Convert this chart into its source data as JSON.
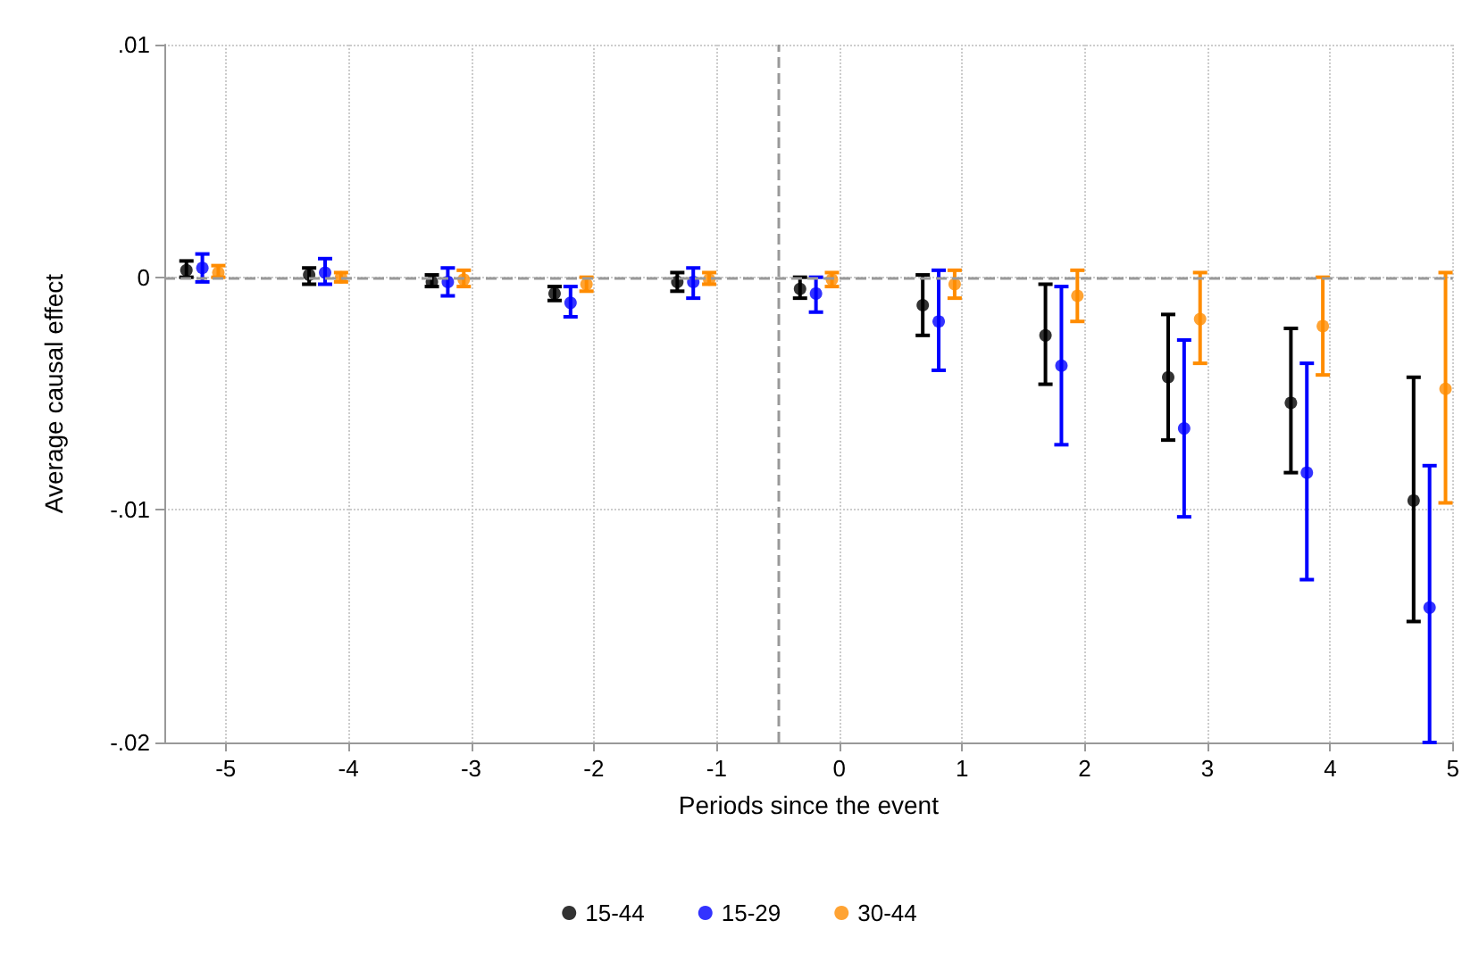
{
  "chart_data": {
    "type": "scatter",
    "xlabel": "Periods since the event",
    "ylabel": "Average causal effect",
    "xlim": [
      -5.5,
      5
    ],
    "xticks": [
      -5,
      -4,
      -3,
      -2,
      -1,
      0,
      1,
      2,
      3,
      4,
      5
    ],
    "ylim": [
      -0.02,
      0.01
    ],
    "yticks": [
      {
        "value": -0.02,
        "label": "-.02"
      },
      {
        "value": -0.01,
        "label": "-.01"
      },
      0,
      {
        "value": 0.01,
        "label": ".01"
      }
    ],
    "grid": true,
    "legend": "bottom",
    "marker": "circle",
    "ref_lines": [
      {
        "axis": "x",
        "value": -0.5,
        "color": "#999999",
        "line_style": "dashed"
      },
      {
        "axis": "y",
        "value": 0,
        "color": "#999999",
        "line_style": "dashed"
      }
    ],
    "series": [
      {
        "name": "15-44",
        "color": "#000000",
        "x": [
          -5.32,
          -4.32,
          -3.32,
          -2.32,
          -1.32,
          -0.32,
          0.68,
          1.68,
          2.68,
          3.68,
          4.68
        ],
        "values": [
          0.0003,
          0.0001,
          -0.0002,
          -0.0007,
          -0.0002,
          -0.0005,
          -0.0012,
          -0.0025,
          -0.0043,
          -0.0054,
          -0.0096
        ],
        "errors": [
          [
            0,
            0.0007
          ],
          [
            -0.0003,
            0.0004
          ],
          [
            -0.0004,
            0.0001
          ],
          [
            -0.001,
            -0.0004
          ],
          [
            -0.0006,
            0.0002
          ],
          [
            -0.0009,
            0
          ],
          [
            -0.0025,
            0.0001
          ],
          [
            -0.0046,
            -0.0003
          ],
          [
            -0.007,
            -0.0016
          ],
          [
            -0.0084,
            -0.0022
          ],
          [
            -0.0148,
            -0.0043
          ]
        ]
      },
      {
        "name": "15-29",
        "color": "#0000ff",
        "x": [
          -5.19,
          -4.19,
          -3.19,
          -2.19,
          -1.19,
          -0.19,
          0.81,
          1.81,
          2.81,
          3.81,
          4.81
        ],
        "values": [
          0.0004,
          0.0002,
          -0.0002,
          -0.0011,
          -0.0002,
          -0.0007,
          -0.0019,
          -0.0038,
          -0.0065,
          -0.0084,
          -0.0142
        ],
        "errors": [
          [
            -0.0002,
            0.001
          ],
          [
            -0.0003,
            0.0008
          ],
          [
            -0.0008,
            0.0004
          ],
          [
            -0.0017,
            -0.0004
          ],
          [
            -0.0009,
            0.0004
          ],
          [
            -0.0015,
            0
          ],
          [
            -0.004,
            0.0003
          ],
          [
            -0.0072,
            -0.0004
          ],
          [
            -0.0103,
            -0.0027
          ],
          [
            -0.013,
            -0.0037
          ],
          [
            -0.02,
            -0.0081
          ]
        ]
      },
      {
        "name": "30-44",
        "color": "#ff8c00",
        "x": [
          -5.06,
          -4.06,
          -3.06,
          -2.06,
          -1.06,
          -0.06,
          0.94,
          1.94,
          2.94,
          3.94,
          4.94
        ],
        "values": [
          0.0002,
          0,
          -0.0001,
          -0.0003,
          -0.0001,
          -0.0001,
          -0.0003,
          -0.0008,
          -0.0018,
          -0.0021,
          -0.0048
        ],
        "errors": [
          [
            0,
            0.0005
          ],
          [
            -0.0002,
            0.0002
          ],
          [
            -0.0004,
            0.0003
          ],
          [
            -0.0006,
            0
          ],
          [
            -0.0003,
            0.0002
          ],
          [
            -0.0004,
            0.0002
          ],
          [
            -0.0009,
            0.0003
          ],
          [
            -0.0019,
            0.0003
          ],
          [
            -0.0037,
            0.0002
          ],
          [
            -0.0042,
            0
          ],
          [
            -0.0097,
            0.0002
          ]
        ]
      }
    ]
  }
}
